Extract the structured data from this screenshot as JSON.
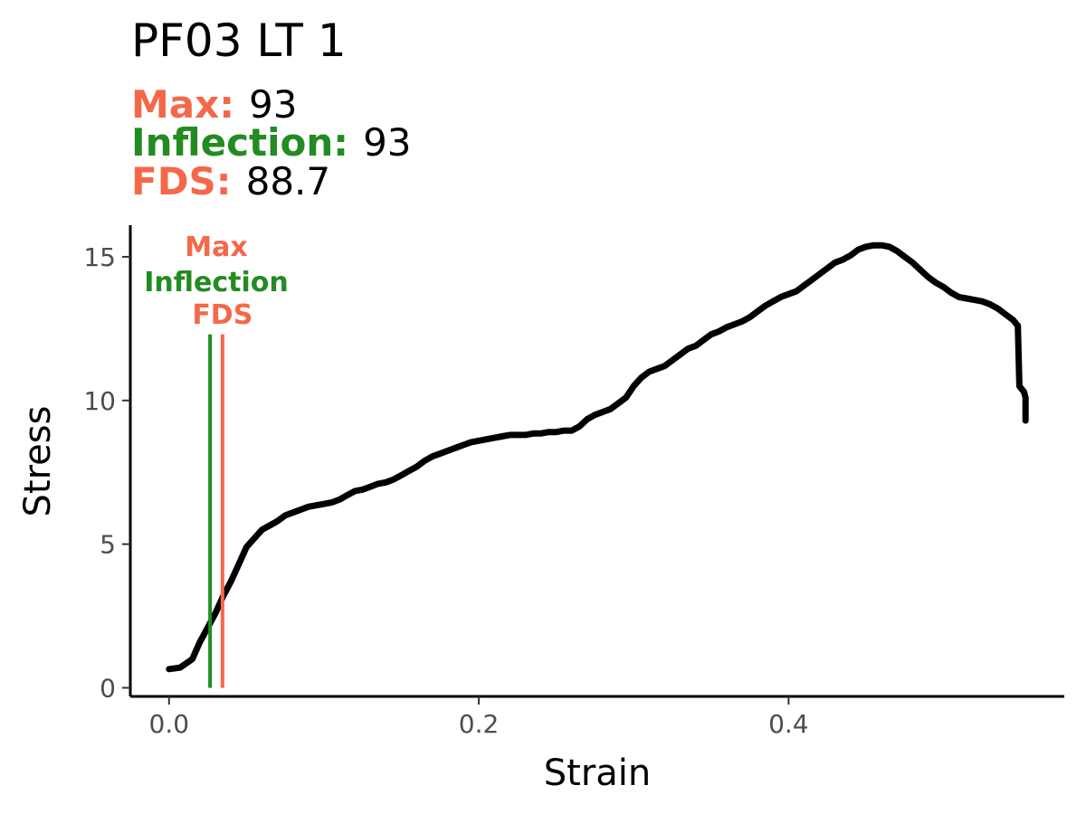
{
  "title": "PF03 LT 1",
  "stats": [
    {
      "label": "Max:",
      "value": "93",
      "color": "#f4684a"
    },
    {
      "label": "Inflection:",
      "value": "93",
      "color": "#228b22"
    },
    {
      "label": "FDS:",
      "value": "88.7",
      "color": "#f4684a"
    }
  ],
  "chart_data": {
    "type": "line",
    "xlabel": "Strain",
    "ylabel": "Stress",
    "xlim": [
      -0.025,
      0.578
    ],
    "ylim": [
      -0.3,
      16.1
    ],
    "x_ticks": [
      0.0,
      0.2,
      0.4
    ],
    "x_tick_labels": [
      "0.0",
      "0.2",
      "0.4"
    ],
    "y_ticks": [
      0,
      5,
      10,
      15
    ],
    "y_tick_labels": [
      "0",
      "5",
      "10",
      "15"
    ],
    "grid": false,
    "line_color": "#000000",
    "series": [
      {
        "x": [
          0.0,
          0.007,
          0.015,
          0.02,
          0.025,
          0.03,
          0.035,
          0.04,
          0.045,
          0.05,
          0.055,
          0.06,
          0.065,
          0.07,
          0.075,
          0.08,
          0.085,
          0.09,
          0.095,
          0.1,
          0.105,
          0.11,
          0.115,
          0.12,
          0.125,
          0.13,
          0.135,
          0.14,
          0.145,
          0.15,
          0.155,
          0.16,
          0.165,
          0.17,
          0.175,
          0.18,
          0.185,
          0.19,
          0.195,
          0.2,
          0.205,
          0.21,
          0.215,
          0.22,
          0.225,
          0.23,
          0.235,
          0.24,
          0.245,
          0.25,
          0.255,
          0.26,
          0.265,
          0.27,
          0.275,
          0.28,
          0.285,
          0.29,
          0.295,
          0.3,
          0.305,
          0.31,
          0.315,
          0.32,
          0.325,
          0.33,
          0.335,
          0.34,
          0.345,
          0.35,
          0.355,
          0.36,
          0.365,
          0.37,
          0.375,
          0.38,
          0.385,
          0.39,
          0.395,
          0.4,
          0.405,
          0.41,
          0.415,
          0.42,
          0.425,
          0.43,
          0.435,
          0.44,
          0.445,
          0.45,
          0.455,
          0.46,
          0.465,
          0.47,
          0.475,
          0.48,
          0.485,
          0.49,
          0.495,
          0.5,
          0.505,
          0.51,
          0.515,
          0.52,
          0.525,
          0.53,
          0.535,
          0.54,
          0.545,
          0.548,
          0.549,
          0.552,
          0.553,
          0.553
        ],
        "y": [
          0.65,
          0.7,
          1.0,
          1.6,
          2.1,
          2.6,
          3.2,
          3.7,
          4.3,
          4.9,
          5.2,
          5.5,
          5.65,
          5.8,
          6.0,
          6.1,
          6.2,
          6.3,
          6.35,
          6.4,
          6.45,
          6.55,
          6.7,
          6.85,
          6.9,
          7.0,
          7.1,
          7.15,
          7.25,
          7.4,
          7.55,
          7.7,
          7.9,
          8.05,
          8.15,
          8.25,
          8.35,
          8.45,
          8.55,
          8.6,
          8.65,
          8.7,
          8.75,
          8.8,
          8.8,
          8.8,
          8.85,
          8.85,
          8.9,
          8.9,
          8.95,
          8.95,
          9.1,
          9.35,
          9.5,
          9.6,
          9.7,
          9.9,
          10.1,
          10.5,
          10.8,
          11.0,
          11.1,
          11.2,
          11.4,
          11.6,
          11.8,
          11.9,
          12.1,
          12.3,
          12.4,
          12.55,
          12.65,
          12.75,
          12.9,
          13.1,
          13.3,
          13.45,
          13.6,
          13.7,
          13.8,
          14.0,
          14.2,
          14.4,
          14.6,
          14.8,
          14.9,
          15.05,
          15.25,
          15.35,
          15.4,
          15.4,
          15.35,
          15.2,
          15.0,
          14.8,
          14.55,
          14.3,
          14.1,
          13.95,
          13.75,
          13.6,
          13.55,
          13.5,
          13.45,
          13.35,
          13.2,
          13.0,
          12.8,
          12.6,
          10.5,
          10.3,
          10.1,
          9.3
        ]
      }
    ],
    "markers": [
      {
        "name": "Inflection",
        "x": 0.0265,
        "color": "#228b22",
        "top": 12.3
      },
      {
        "name": "FDS",
        "x": 0.0345,
        "color": "#f4684a",
        "top": 12.3
      }
    ],
    "marker_labels": [
      {
        "text": "Max",
        "color": "#f4684a"
      },
      {
        "text": "Inflection",
        "color": "#228b22"
      },
      {
        "text": "FDS",
        "color": "#f4684a"
      }
    ]
  }
}
